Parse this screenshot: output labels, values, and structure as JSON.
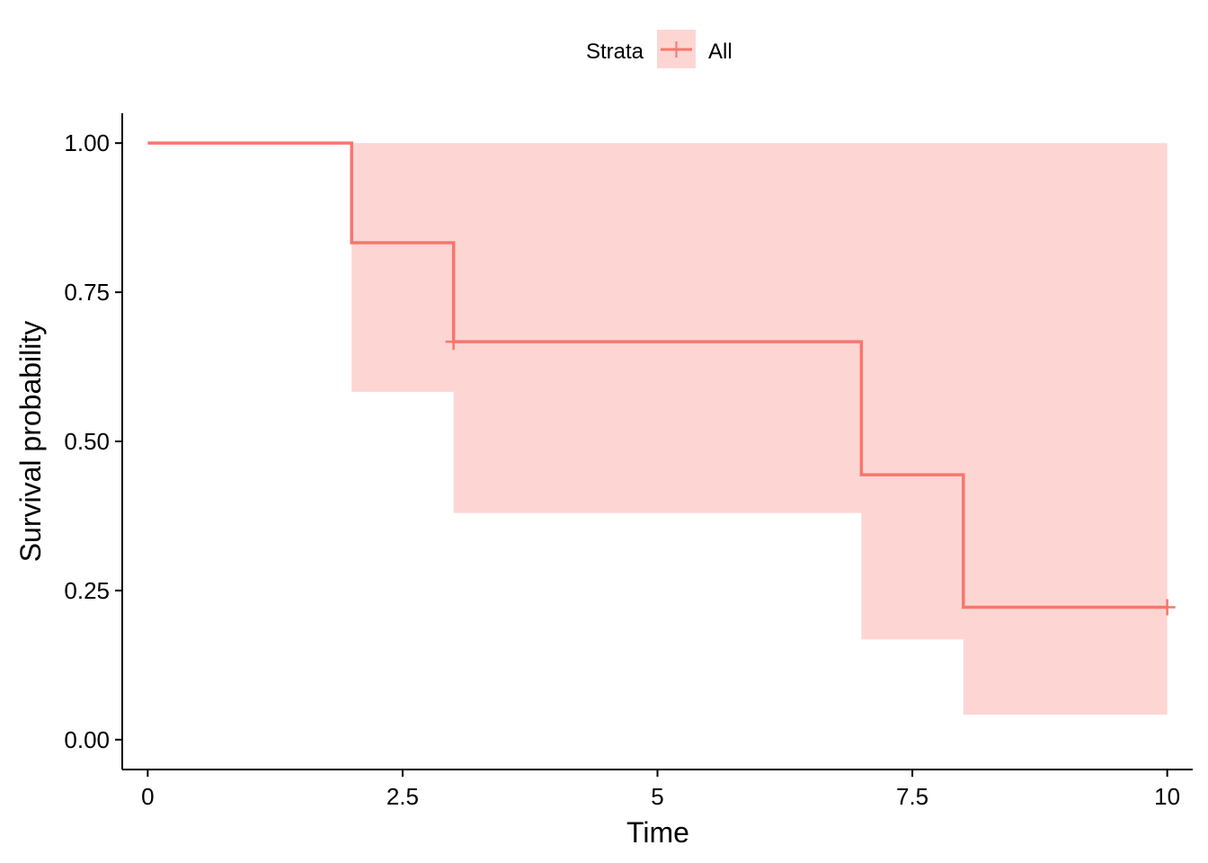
{
  "chart_data": {
    "type": "line",
    "subtype": "step",
    "xlabel": "Time",
    "ylabel": "Survival probability",
    "xlim": [
      -0.25,
      10.25
    ],
    "ylim": [
      -0.05,
      1.05
    ],
    "x_ticks": [
      {
        "value": 0,
        "label": "0"
      },
      {
        "value": 2.5,
        "label": "2.5"
      },
      {
        "value": 5,
        "label": "5"
      },
      {
        "value": 7.5,
        "label": "7.5"
      },
      {
        "value": 10,
        "label": "10"
      }
    ],
    "y_ticks": [
      {
        "value": 0,
        "label": "0.00"
      },
      {
        "value": 0.25,
        "label": "0.25"
      },
      {
        "value": 0.5,
        "label": "0.50"
      },
      {
        "value": 0.75,
        "label": "0.75"
      },
      {
        "value": 1,
        "label": "1.00"
      }
    ],
    "grid": false,
    "legend": {
      "position": "top",
      "title": "Strata",
      "entries": [
        "All"
      ]
    },
    "series": [
      {
        "name": "All",
        "color": "#F8766D",
        "band_color": "#F8766D",
        "steps": [
          {
            "x": 0,
            "y": 1.0,
            "lower": 1.0,
            "upper": 1.0
          },
          {
            "x": 2,
            "y": 0.833,
            "lower": 0.583,
            "upper": 1.0
          },
          {
            "x": 3,
            "y": 0.667,
            "lower": 0.38,
            "upper": 1.0
          },
          {
            "x": 7,
            "y": 0.444,
            "lower": 0.168,
            "upper": 1.0
          },
          {
            "x": 8,
            "y": 0.222,
            "lower": 0.042,
            "upper": 1.0
          }
        ],
        "end_x": 10,
        "censored": [
          {
            "x": 3,
            "y": 0.667
          },
          {
            "x": 10,
            "y": 0.222
          }
        ]
      }
    ]
  }
}
